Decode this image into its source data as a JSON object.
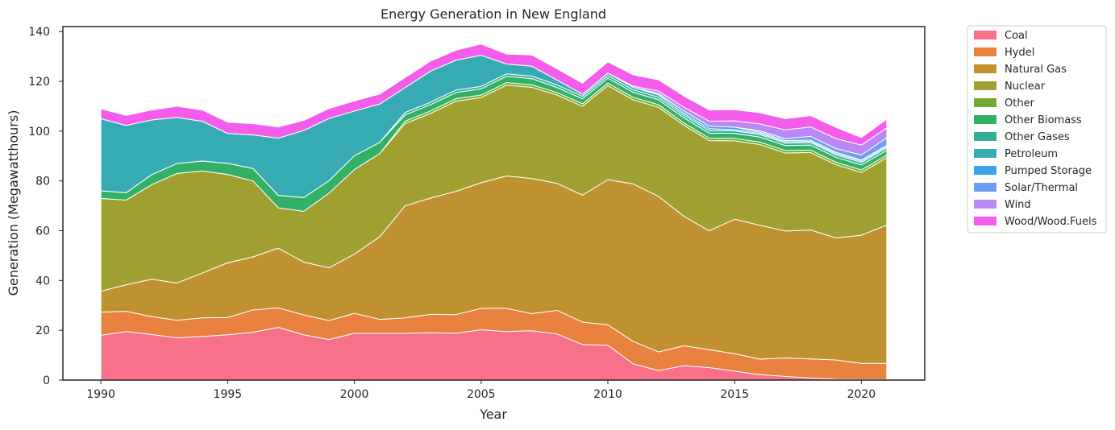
{
  "chart_data": {
    "type": "area",
    "stacked": true,
    "title": "Energy Generation in New England",
    "xlabel": "Year",
    "ylabel": "Generation (Megawatthours)",
    "xlim": [
      1988.5,
      2022.5
    ],
    "ylim": [
      0,
      142
    ],
    "xticks": [
      1990,
      1995,
      2000,
      2005,
      2010,
      2015,
      2020
    ],
    "yticks": [
      0,
      20,
      40,
      60,
      80,
      100,
      120,
      140
    ],
    "grid": false,
    "legend_position": "outside-right",
    "x": [
      1990,
      1991,
      1992,
      1993,
      1994,
      1995,
      1996,
      1997,
      1998,
      1999,
      2000,
      2001,
      2002,
      2003,
      2004,
      2005,
      2006,
      2007,
      2008,
      2009,
      2010,
      2011,
      2012,
      2013,
      2014,
      2015,
      2016,
      2017,
      2018,
      2019,
      2020,
      2021
    ],
    "series": [
      {
        "name": "Coal",
        "color": "#f77189",
        "values": [
          18,
          19.5,
          18.3,
          17,
          17.5,
          18.2,
          19.2,
          21.2,
          18.2,
          16.3,
          18.8,
          18.8,
          18.8,
          19,
          18.8,
          20.2,
          19.5,
          19.8,
          18.5,
          14.3,
          14,
          6.5,
          3.8,
          5.8,
          5,
          3.6,
          2.2,
          1.5,
          0.8,
          0.3,
          0.2,
          0.2
        ]
      },
      {
        "name": "Hydel",
        "color": "#e9813f",
        "values": [
          9.3,
          8.1,
          7.2,
          7,
          7.5,
          6.9,
          9,
          7.8,
          8,
          7.6,
          8,
          5.6,
          6.2,
          7.4,
          7.5,
          8.6,
          9.3,
          6.9,
          9.5,
          9,
          8.2,
          9,
          7.5,
          8,
          7.2,
          7,
          6.2,
          7.4,
          7.7,
          7.8,
          6.5,
          6.5
        ]
      },
      {
        "name": "Natural Gas",
        "color": "#c0922f",
        "values": [
          8.4,
          10.7,
          15,
          15,
          18,
          22,
          21.3,
          24,
          21.2,
          21.2,
          23.8,
          33.2,
          45,
          46.7,
          49.5,
          50.5,
          53.2,
          54.3,
          51,
          51,
          58.3,
          63.3,
          62.5,
          52,
          47.8,
          54,
          53.8,
          51,
          51.8,
          49,
          51.5,
          55.6
        ]
      },
      {
        "name": "Nuclear",
        "color": "#a0a031",
        "values": [
          37.3,
          34,
          38,
          44,
          41,
          35.5,
          30.5,
          16.2,
          20.4,
          30,
          34,
          33.4,
          33,
          34,
          36.2,
          34.2,
          36.5,
          36.6,
          35.5,
          35.7,
          37.8,
          33.8,
          35.8,
          36.5,
          36.2,
          31.5,
          32.4,
          31.3,
          31.1,
          29.4,
          25.2,
          27
        ]
      },
      {
        "name": "Other",
        "color": "#70ac31",
        "values": [
          0,
          0,
          0,
          0,
          0,
          0,
          0,
          0,
          0,
          0,
          0,
          0,
          1,
          1,
          1,
          1,
          1,
          1,
          1,
          1,
          1,
          1,
          1,
          1,
          1,
          1,
          1,
          1,
          1,
          1,
          1,
          1
        ]
      },
      {
        "name": "Other Biomass",
        "color": "#32b166",
        "values": [
          3,
          3,
          4,
          4,
          4,
          4.5,
          5,
          5,
          5.5,
          5,
          5.5,
          4.5,
          2.5,
          2.5,
          2.5,
          2.5,
          2.5,
          2.5,
          2,
          2,
          2,
          2,
          2,
          2,
          2,
          2,
          2,
          2,
          2,
          2,
          2,
          2
        ]
      },
      {
        "name": "Other Gases",
        "color": "#35ae94",
        "values": [
          0,
          0,
          0,
          0,
          0,
          0,
          0,
          0,
          0,
          0,
          0,
          0,
          1,
          1,
          1,
          1,
          1,
          1,
          1,
          1,
          1,
          1,
          1,
          1,
          1,
          1,
          1,
          1,
          1,
          1,
          1,
          1
        ]
      },
      {
        "name": "Petroleum",
        "color": "#37abb4",
        "values": [
          29,
          27,
          22,
          18.5,
          16,
          12,
          13.5,
          23,
          27,
          25,
          18,
          15.4,
          10,
          12.5,
          12,
          12.5,
          4,
          4,
          2,
          0.8,
          1,
          1,
          1,
          0.8,
          0.8,
          0.5,
          0.5,
          0.5,
          0.5,
          0.5,
          0.5,
          0.5
        ]
      },
      {
        "name": "Pumped Storage",
        "color": "#3ba3ec",
        "values": [
          0,
          0,
          0,
          0,
          0,
          0,
          0,
          0,
          0,
          0,
          0,
          0,
          0,
          0,
          0,
          0,
          0,
          0,
          0,
          0,
          0,
          0,
          0.5,
          1,
          1,
          1,
          0.5,
          0.5,
          0.5,
          0.5,
          0.5,
          0.5
        ]
      },
      {
        "name": "Solar/Thermal",
        "color": "#6e9bf4",
        "values": [
          0,
          0,
          0,
          0,
          0,
          0,
          0,
          0,
          0,
          0,
          0,
          0,
          0,
          0,
          0,
          0,
          0,
          0,
          0,
          0,
          0,
          0,
          0,
          0,
          0,
          0,
          0.5,
          0.8,
          1.5,
          1.5,
          2,
          3
        ]
      },
      {
        "name": "Wind",
        "color": "#ba88f4",
        "values": [
          0,
          0,
          0,
          0,
          0,
          0,
          0,
          0,
          0,
          0,
          0,
          0,
          0,
          0,
          0,
          0,
          0,
          0,
          0,
          0,
          0,
          0.5,
          1,
          1.5,
          2,
          2.5,
          2.8,
          3.5,
          3.8,
          4,
          4,
          4
        ]
      },
      {
        "name": "Wood/Wood.Fuels",
        "color": "#f45deb",
        "values": [
          4,
          4,
          4,
          4.5,
          4.5,
          4.5,
          4.5,
          4.5,
          4,
          4,
          4,
          4,
          4,
          4,
          4,
          4.5,
          4,
          4.5,
          4.5,
          4.5,
          4.5,
          4.5,
          4.5,
          4.5,
          4.5,
          4.5,
          4.5,
          4.5,
          4.5,
          4.5,
          3,
          3.5
        ]
      }
    ]
  }
}
